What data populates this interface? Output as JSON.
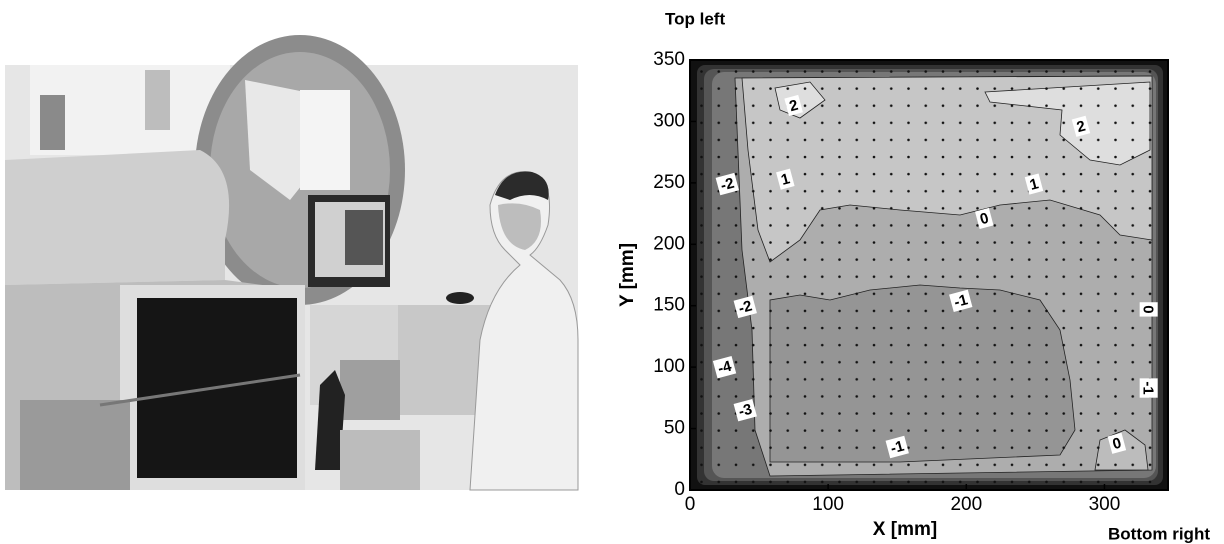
{
  "chart_data": {
    "type": "contour",
    "corner_label_top": "Top  left",
    "corner_label_bottom": "Bottom right",
    "xlabel": "X [mm]",
    "ylabel": "Y [mm]",
    "xlim": [
      0,
      346
    ],
    "ylim": [
      0,
      350
    ],
    "xticks": [
      0,
      100,
      200,
      300
    ],
    "yticks": [
      0,
      50,
      100,
      150,
      200,
      250,
      300,
      350
    ],
    "contour_labels": [
      {
        "x": 75,
        "y": 313,
        "value": 2
      },
      {
        "x": 283,
        "y": 296,
        "value": 2
      },
      {
        "x": 69,
        "y": 253,
        "value": 1
      },
      {
        "x": 249,
        "y": 249,
        "value": 1
      },
      {
        "x": 213,
        "y": 221,
        "value": 0
      },
      {
        "x": 196,
        "y": 154,
        "value": -1
      },
      {
        "x": 27,
        "y": 249,
        "value": -2
      },
      {
        "x": 40,
        "y": 149,
        "value": -2
      },
      {
        "x": 25,
        "y": 100,
        "value": -4
      },
      {
        "x": 40,
        "y": 65,
        "value": -3
      },
      {
        "x": 150,
        "y": 35,
        "value": -1
      },
      {
        "x": 309,
        "y": 38,
        "value": 0
      },
      {
        "x": 332,
        "y": 147,
        "value": 0
      },
      {
        "x": 332,
        "y": 83,
        "value": -1
      }
    ]
  }
}
